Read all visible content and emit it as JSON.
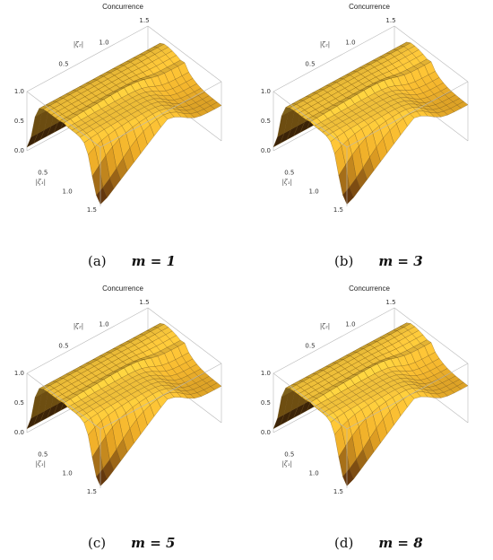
{
  "figure": {
    "captions": [
      {
        "label": "(a)",
        "equation": "m = 1"
      },
      {
        "label": "(b)",
        "equation": "m = 3"
      },
      {
        "label": "(c)",
        "equation": "m = 5"
      },
      {
        "label": "(d)",
        "equation": "m = 8"
      }
    ]
  },
  "colors": {
    "surface_high": "#f2c23a",
    "surface_mid": "#d69a22",
    "surface_low": "#3a1606",
    "mesh": "#6b4a10",
    "box": "#b8b8b8"
  },
  "chart_data": [
    {
      "type": "surface3d",
      "title": "Concurrence",
      "xlabel": "|ζ₂|",
      "ylabel": "|ζ₁|",
      "zlabel": "",
      "x_ticks": [
        "0.5",
        "1.0",
        "1.5"
      ],
      "y_ticks": [
        "0.5",
        "1.0",
        "1.5"
      ],
      "z_ticks": [
        "0.0",
        "0.5",
        "1.0"
      ],
      "xlim": [
        0,
        1.5
      ],
      "ylim": [
        0,
        1.5
      ],
      "zlim": [
        0,
        1.0
      ],
      "m": 1,
      "ridge_zeta1": 0.75,
      "plateau": 0.92,
      "drop_region": "|ζ₂| > 1.0"
    },
    {
      "type": "surface3d",
      "title": "Concurrence",
      "xlabel": "|ζ₂|",
      "ylabel": "|ζ₁|",
      "zlabel": "",
      "x_ticks": [
        "0.5",
        "1.0",
        "1.5"
      ],
      "y_ticks": [
        "0.5",
        "1.0",
        "1.5"
      ],
      "z_ticks": [
        "0.0",
        "0.5",
        "1.0"
      ],
      "xlim": [
        0,
        1.5
      ],
      "ylim": [
        0,
        1.5
      ],
      "zlim": [
        0,
        1.0
      ],
      "m": 3,
      "ridge_zeta1": 0.75,
      "plateau": 0.94,
      "drop_region": "|ζ₂| > 1.0"
    },
    {
      "type": "surface3d",
      "title": "Concurrence",
      "xlabel": "|ζ₂|",
      "ylabel": "|ζ₁|",
      "zlabel": "",
      "x_ticks": [
        "0.5",
        "1.0",
        "1.5"
      ],
      "y_ticks": [
        "0.5",
        "1.0",
        "1.5"
      ],
      "z_ticks": [
        "0.0",
        "0.5",
        "1.0"
      ],
      "xlim": [
        0,
        1.5
      ],
      "ylim": [
        0,
        1.5
      ],
      "zlim": [
        0,
        1.0
      ],
      "m": 5,
      "ridge_zeta1": 0.75,
      "plateau": 0.95,
      "drop_region": "|ζ₂| > 1.0"
    },
    {
      "type": "surface3d",
      "title": "Concurrence",
      "xlabel": "|ζ₂|",
      "ylabel": "|ζ₁|",
      "zlabel": "",
      "x_ticks": [
        "0.5",
        "1.0",
        "1.5"
      ],
      "y_ticks": [
        "0.5",
        "1.0",
        "1.5"
      ],
      "z_ticks": [
        "0.0",
        "0.5",
        "1.0"
      ],
      "xlim": [
        0,
        1.5
      ],
      "ylim": [
        0,
        1.5
      ],
      "zlim": [
        0,
        1.0
      ],
      "m": 8,
      "ridge_zeta1": 0.75,
      "plateau": 0.96,
      "drop_region": "|ζ₂| > 1.0"
    }
  ]
}
